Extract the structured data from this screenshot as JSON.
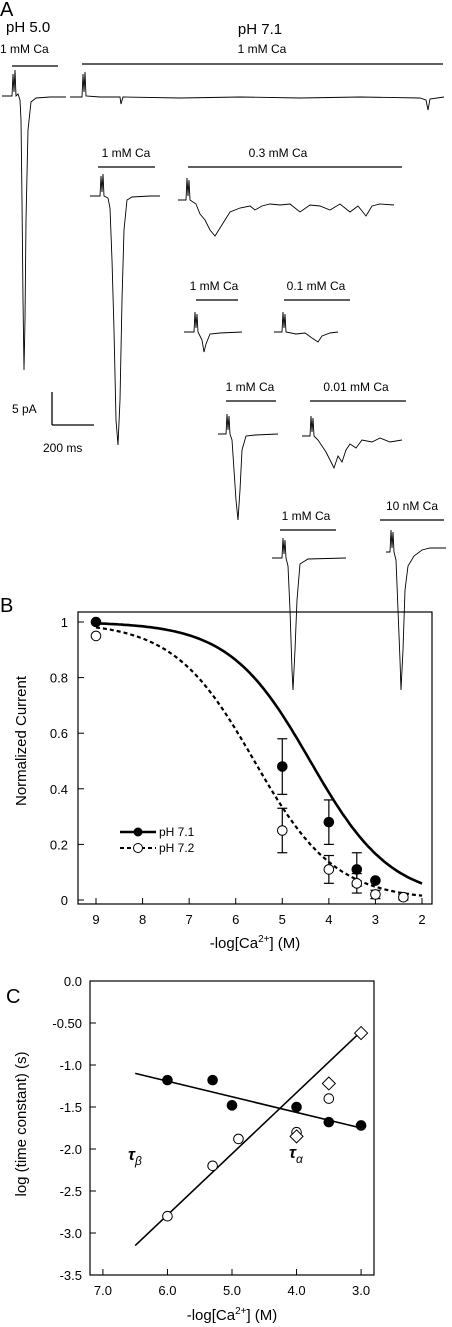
{
  "panel_a": {
    "letter": "A",
    "header_ph_5": "pH 5.0",
    "header_ph_71": "pH 7.1",
    "header_ca_5": "1 mM Ca",
    "header_ca_71": "1 mM Ca",
    "pairs": [
      {
        "ctrl_label": "1 mM Ca",
        "test_label": "0.3 mM Ca"
      },
      {
        "ctrl_label": "1 mM Ca",
        "test_label": "0.1 mM Ca"
      },
      {
        "ctrl_label": "1 mM Ca",
        "test_label": "0.01 mM Ca"
      },
      {
        "ctrl_label": "1 mM Ca",
        "test_label": "10 nM Ca"
      }
    ],
    "scale_current": "5 pA",
    "scale_time": "200 ms"
  },
  "chart_data": [
    {
      "panel": "B",
      "type": "scatter",
      "xlabel": "-log[Ca",
      "xlabel_sup": "2+",
      "xlabel_suffix": "] (M)",
      "ylabel": "Normalized Current",
      "xlim": [
        9,
        2
      ],
      "ylim": [
        0,
        1
      ],
      "xticks": [
        "9",
        "8",
        "7",
        "6",
        "5",
        "4",
        "3",
        "2"
      ],
      "yticks": [
        "0",
        "0.2",
        "0.4",
        "0.6",
        "0.8",
        "1"
      ],
      "legend_position": "bottom-left",
      "series": [
        {
          "name": "pH 7.1",
          "marker": "filled-circle",
          "line": "solid",
          "x": [
            9,
            5,
            4,
            3.4,
            3
          ],
          "y": [
            1.0,
            0.48,
            0.28,
            0.11,
            0.07
          ],
          "err": [
            0,
            0.1,
            0.08,
            0.06,
            0
          ],
          "fit_ic50_log": 4.4,
          "fit_hill": 0.5
        },
        {
          "name": "pH 7.2",
          "marker": "open-circle",
          "line": "dashed",
          "x": [
            9,
            5,
            4,
            3.4,
            3,
            2.4
          ],
          "y": [
            0.95,
            0.25,
            0.11,
            0.06,
            0.02,
            0.01
          ],
          "err": [
            0,
            0.08,
            0.05,
            0.035,
            0.015,
            0.01
          ],
          "fit_ic50_log": 5.6,
          "fit_hill": 0.5
        }
      ]
    },
    {
      "panel": "C",
      "type": "scatter",
      "xlabel": "-log[Ca",
      "xlabel_sup": "2+",
      "xlabel_suffix": "] (M)",
      "ylabel": "log (time constant) (s)",
      "xlim": [
        7.2,
        2.8
      ],
      "ylim": [
        -3.5,
        0.0
      ],
      "xticks": [
        "7.0",
        "6.0",
        "5.0",
        "4.0",
        "3.0"
      ],
      "yticks": [
        "0.0",
        "-0.50",
        "-1.0",
        "-1.5",
        "-2.0",
        "-2.5",
        "-3.0",
        "-3.5"
      ],
      "series": [
        {
          "name": "τβ",
          "label_main": "τ",
          "label_sub": "β",
          "marker": "filled-circle",
          "x": [
            6.0,
            5.3,
            5.0,
            4.0,
            3.5,
            3.0
          ],
          "y": [
            -1.18,
            -1.18,
            -1.48,
            -1.5,
            -1.68,
            -1.72
          ],
          "fit_line": {
            "x": [
              6.5,
              3.0
            ],
            "y": [
              -1.1,
              -1.75
            ]
          }
        },
        {
          "name": "τα",
          "label_main": "τ",
          "label_sub": "α",
          "marker": "open-circle",
          "x": [
            6.0,
            5.3,
            4.9,
            4.0,
            3.5
          ],
          "y": [
            -2.8,
            -2.2,
            -1.88,
            -1.8,
            -1.4
          ],
          "fit_line": {
            "x": [
              6.5,
              3.0
            ],
            "y": [
              -3.15,
              -0.6
            ]
          }
        },
        {
          "name": "diamonds",
          "marker": "open-diamond",
          "x": [
            4.0,
            3.5,
            3.0
          ],
          "y": [
            -1.85,
            -1.22,
            -0.62
          ]
        }
      ]
    }
  ]
}
